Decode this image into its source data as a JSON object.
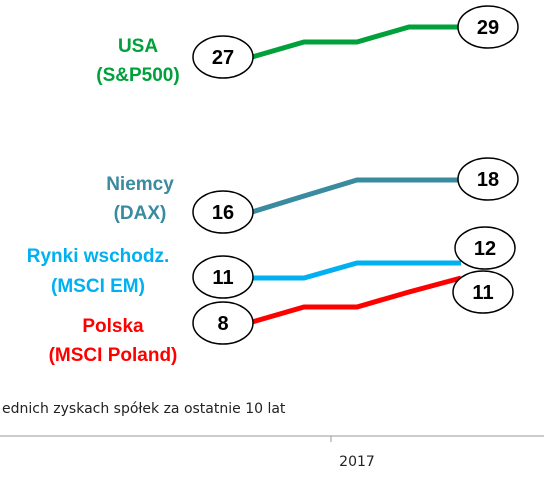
{
  "chart_data": {
    "type": "line",
    "note": "ednich zyskach spółek za ostatnie 10 lat",
    "x_tick_label": "2017",
    "colors": {
      "usa": "#00a03a",
      "niemcy": "#3a8aa0",
      "em": "#00b0f0",
      "polska": "#ff0000"
    },
    "series": [
      {
        "key": "usa",
        "name": [
          "USA",
          "(S&P500)"
        ],
        "values": [
          27,
          28,
          28,
          29,
          29
        ],
        "start_label": "27",
        "end_label": "29"
      },
      {
        "key": "niemcy",
        "name": [
          "Niemcy",
          "(DAX)"
        ],
        "values": [
          16,
          17,
          18,
          18,
          18
        ],
        "start_label": "16",
        "end_label": "18"
      },
      {
        "key": "em",
        "name": [
          "Rynki wschodz.",
          "(MSCI EM)"
        ],
        "values": [
          11,
          11,
          12,
          12,
          12
        ],
        "start_label": "11",
        "end_label": "12"
      },
      {
        "key": "polska",
        "name": [
          "Polska",
          "(MSCI Poland)"
        ],
        "values": [
          8,
          9,
          9,
          10,
          11
        ],
        "start_label": "8",
        "end_label": "11"
      }
    ]
  }
}
